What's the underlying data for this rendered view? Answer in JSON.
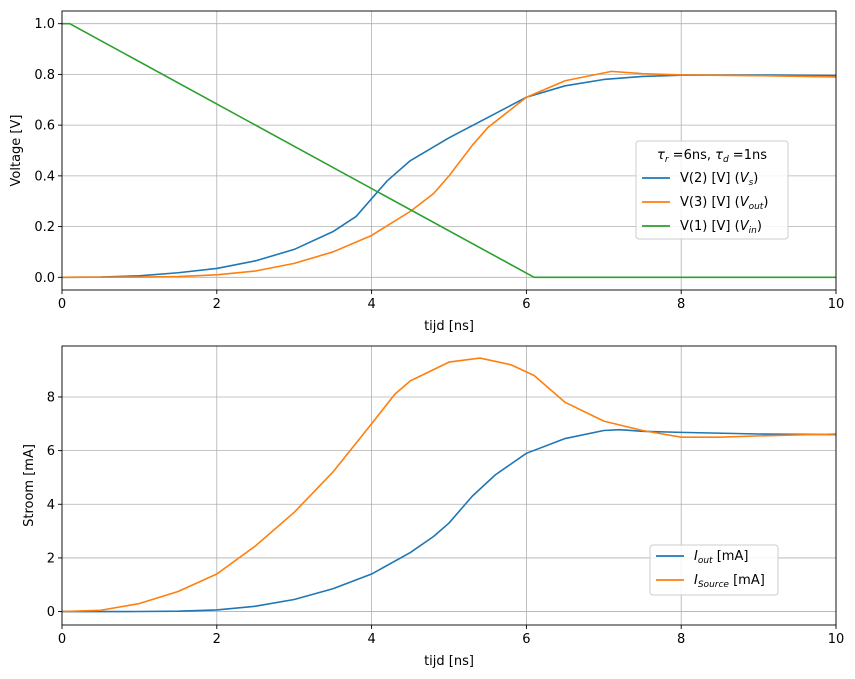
{
  "chart_data": [
    {
      "type": "line",
      "xlabel": "tijd [ns]",
      "ylabel": "Voltage [V]",
      "xlim": [
        0,
        10
      ],
      "ylim": [
        -0.05,
        1.05
      ],
      "xticks": [
        0,
        2,
        4,
        6,
        8,
        10
      ],
      "yticks": [
        0.0,
        0.2,
        0.4,
        0.6,
        0.8,
        1.0
      ],
      "xtick_labels": [
        "0",
        "2",
        "4",
        "6",
        "8",
        "10"
      ],
      "ytick_labels": [
        "0.0",
        "0.2",
        "0.4",
        "0.6",
        "0.8",
        "1.0"
      ],
      "grid": true,
      "legend_position": "center-right",
      "legend_title": {
        "main1": "τ",
        "sub1": "r",
        "mid": " =6ns, ",
        "main2": "τ",
        "sub2": "d",
        "end": " =1ns"
      },
      "series": [
        {
          "name": "V(2) [V]  (Vs)",
          "legend": {
            "main": "V(2) [V]  (",
            "math": "V",
            "sub": "s",
            "end": ")"
          },
          "color": "#1f77b4",
          "x": [
            0,
            0.5,
            1.0,
            1.5,
            2.0,
            2.5,
            3.0,
            3.5,
            3.8,
            4.0,
            4.2,
            4.5,
            5.0,
            5.5,
            6.0,
            6.5,
            7.0,
            7.5,
            8.0,
            9.0,
            10.0
          ],
          "y": [
            0,
            0.001,
            0.006,
            0.018,
            0.035,
            0.065,
            0.11,
            0.18,
            0.24,
            0.31,
            0.38,
            0.46,
            0.55,
            0.63,
            0.71,
            0.755,
            0.78,
            0.792,
            0.797,
            0.797,
            0.795
          ]
        },
        {
          "name": "V(3) [V]  (Vout)",
          "legend": {
            "main": "V(3) [V]  (",
            "math": "V",
            "sub": "out",
            "end": ")"
          },
          "color": "#ff7f0e",
          "x": [
            0,
            1.0,
            1.5,
            2.0,
            2.5,
            3.0,
            3.5,
            4.0,
            4.5,
            4.8,
            5.0,
            5.3,
            5.5,
            6.0,
            6.5,
            7.1,
            7.5,
            8.0,
            9.0,
            10.0
          ],
          "y": [
            0,
            0.001,
            0.003,
            0.01,
            0.025,
            0.055,
            0.1,
            0.165,
            0.26,
            0.33,
            0.4,
            0.52,
            0.59,
            0.71,
            0.775,
            0.812,
            0.803,
            0.798,
            0.795,
            0.79
          ]
        },
        {
          "name": "V(1) [V]  (Vin)",
          "legend": {
            "main": "V(1) [V]  (",
            "math": "V",
            "sub": "in",
            "end": ")"
          },
          "color": "#2ca02c",
          "x": [
            0,
            0.1,
            6.1,
            10.0
          ],
          "y": [
            1.0,
            1.0,
            0.0,
            0.0
          ]
        }
      ]
    },
    {
      "type": "line",
      "xlabel": "tijd [ns]",
      "ylabel": "Stroom [mA]",
      "xlim": [
        0,
        10
      ],
      "ylim": [
        -0.5,
        9.9
      ],
      "xticks": [
        0,
        2,
        4,
        6,
        8,
        10
      ],
      "yticks": [
        0,
        2,
        4,
        6,
        8
      ],
      "xtick_labels": [
        "0",
        "2",
        "4",
        "6",
        "8",
        "10"
      ],
      "ytick_labels": [
        "0",
        "2",
        "4",
        "6",
        "8"
      ],
      "grid": true,
      "legend_position": "lower-right",
      "series": [
        {
          "name": "Iout  [mA]",
          "legend": {
            "math": "I",
            "sub": "out",
            "end": "  [mA]"
          },
          "color": "#1f77b4",
          "x": [
            0,
            1.0,
            1.5,
            2.0,
            2.5,
            3.0,
            3.5,
            4.0,
            4.5,
            4.8,
            5.0,
            5.3,
            5.6,
            6.0,
            6.5,
            7.0,
            7.2,
            7.5,
            8.0,
            9.0,
            10.0
          ],
          "y": [
            0,
            0.003,
            0.015,
            0.06,
            0.2,
            0.45,
            0.85,
            1.4,
            2.2,
            2.8,
            3.3,
            4.3,
            5.1,
            5.9,
            6.45,
            6.75,
            6.78,
            6.72,
            6.68,
            6.62,
            6.6
          ]
        },
        {
          "name": "ISource [mA]",
          "legend": {
            "math": "I",
            "sub": "Source",
            "end": " [mA]"
          },
          "color": "#ff7f0e",
          "x": [
            0,
            0.5,
            1.0,
            1.5,
            2.0,
            2.5,
            3.0,
            3.5,
            4.0,
            4.3,
            4.5,
            5.0,
            5.4,
            5.8,
            6.1,
            6.5,
            7.0,
            7.5,
            8.0,
            8.5,
            9.0,
            10.0
          ],
          "y": [
            0,
            0.05,
            0.3,
            0.75,
            1.4,
            2.45,
            3.7,
            5.2,
            7.0,
            8.1,
            8.6,
            9.3,
            9.45,
            9.2,
            8.8,
            7.8,
            7.1,
            6.75,
            6.5,
            6.5,
            6.55,
            6.62
          ]
        }
      ]
    }
  ]
}
